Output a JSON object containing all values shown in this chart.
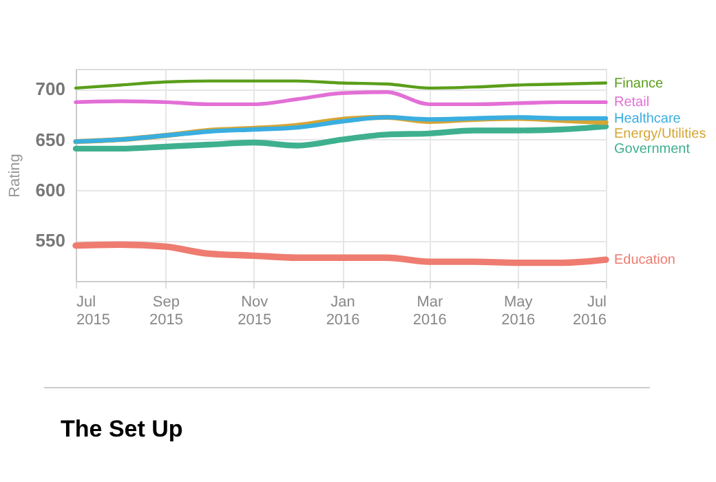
{
  "chart_data": {
    "type": "line",
    "ylabel": "Rating",
    "annotations": [
      "The Set Up"
    ],
    "x": [
      "2015-07",
      "2015-08",
      "2015-09",
      "2015-10",
      "2015-11",
      "2015-12",
      "2016-01",
      "2016-02",
      "2016-03",
      "2016-04",
      "2016-05",
      "2016-06",
      "2016-07"
    ],
    "series": [
      {
        "name": "Finance",
        "color": "#5a9e1a",
        "values": [
          701,
          704,
          707,
          708,
          708,
          708,
          706,
          705,
          701,
          702,
          704,
          705,
          706
        ]
      },
      {
        "name": "Retail",
        "color": "#e36fd6",
        "values": [
          687,
          688,
          687,
          685,
          685,
          690,
          696,
          697,
          685,
          685,
          686,
          687,
          687
        ]
      },
      {
        "name": "Healthcare",
        "color": "#3aaee0",
        "values": [
          648,
          650,
          654,
          658,
          660,
          662,
          668,
          672,
          670,
          671,
          672,
          671,
          671
        ]
      },
      {
        "name": "Energy/Utilities",
        "color": "#d6a534",
        "values": [
          648,
          650,
          654,
          659,
          661,
          664,
          670,
          672,
          668,
          670,
          671,
          669,
          667
        ]
      },
      {
        "name": "Government",
        "color": "#3fb08f",
        "values": [
          641,
          641,
          643,
          645,
          647,
          644,
          650,
          655,
          656,
          659,
          659,
          660,
          663
        ]
      },
      {
        "name": "Education",
        "color": "#ee7c70",
        "values": [
          545,
          546,
          544,
          537,
          535,
          533,
          533,
          533,
          529,
          529,
          528,
          528,
          531
        ]
      }
    ],
    "ylim": [
      510,
      720
    ],
    "yticks": [
      550,
      600,
      650,
      700
    ],
    "xlim": [
      "2015-07",
      "2016-07"
    ],
    "xticks": [
      {
        "value": "2015-07",
        "label": "Jul 2015"
      },
      {
        "value": "2015-09",
        "label": "Sep 2015"
      },
      {
        "value": "2015-11",
        "label": "Nov 2015"
      },
      {
        "value": "2016-01",
        "label": "Jan 2016"
      },
      {
        "value": "2016-03",
        "label": "Mar 2016"
      },
      {
        "value": "2016-05",
        "label": "May 2016"
      },
      {
        "value": "2016-07",
        "label": "Jul 2016"
      }
    ],
    "grid": true,
    "legend": "right",
    "line_style": "solid",
    "marker": "none"
  }
}
